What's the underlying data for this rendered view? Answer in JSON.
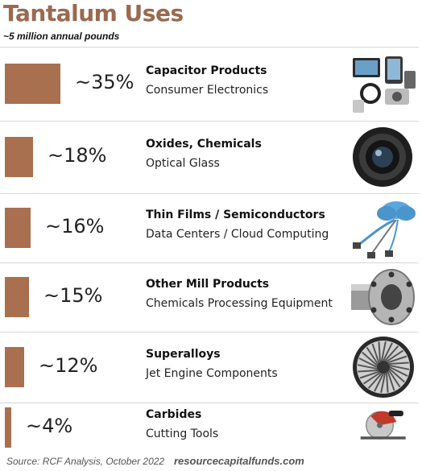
{
  "header": {
    "title": "Tantalum Uses",
    "subtitle": "~5 million annual pounds"
  },
  "chart_data": {
    "type": "bar",
    "orientation": "horizontal",
    "title": "Tantalum Uses",
    "subtitle": "~5 million annual pounds",
    "bar_color": "#a8704f",
    "categories": [
      "Capacitor Products",
      "Oxides, Chemicals",
      "Thin Films / Semiconductors",
      "Other Mill Products",
      "Superalloys",
      "Carbides"
    ],
    "subcategories": [
      "Consumer Electronics",
      "Optical Glass",
      "Data Centers / Cloud Computing",
      "Chemicals Processing Equipment",
      "Jet Engine Components",
      "Cutting Tools"
    ],
    "values": [
      35,
      18,
      16,
      15,
      12,
      4
    ],
    "value_labels": [
      "~35%",
      "~18%",
      "~16%",
      "~15%",
      "~12%",
      "~4%"
    ],
    "xlim": [
      0,
      35
    ],
    "icons": [
      "electronics-icon",
      "camera-lens-icon",
      "cloud-network-icon",
      "pipe-flange-icon",
      "jet-turbine-icon",
      "circular-saw-icon"
    ]
  },
  "footer": {
    "source": "Source: RCF Analysis, October 2022",
    "site": "resourcecapitalfunds.com"
  }
}
